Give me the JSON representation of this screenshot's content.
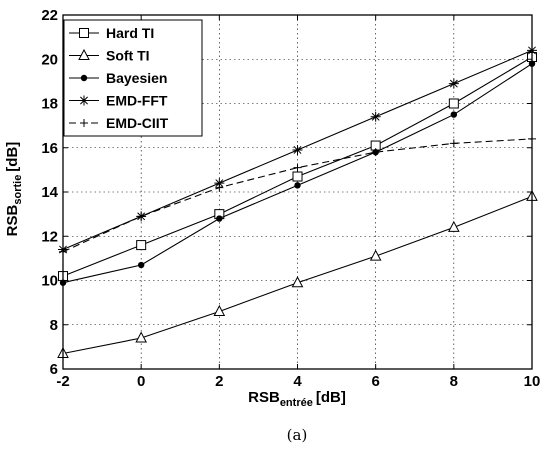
{
  "chart_data": {
    "type": "line",
    "xlabel": {
      "main": "RSB",
      "sub": "entrée",
      "unit": "[dB]"
    },
    "ylabel": {
      "main": "RSB",
      "sub": "sortie",
      "unit": "[dB]"
    },
    "xlim": [
      -2,
      10
    ],
    "ylim": [
      6,
      22
    ],
    "xticks": [
      -2,
      0,
      2,
      4,
      6,
      8,
      10
    ],
    "yticks": [
      6,
      8,
      10,
      12,
      14,
      16,
      18,
      20,
      22
    ],
    "grid": true,
    "legend_position": "top-left",
    "x": [
      -2,
      0,
      2,
      4,
      6,
      8,
      10
    ],
    "series": [
      {
        "name": "Hard TI",
        "marker": "square",
        "line": "solid",
        "values": [
          10.2,
          11.6,
          13.0,
          14.7,
          16.1,
          18.0,
          20.1
        ]
      },
      {
        "name": "Soft TI",
        "marker": "triangle",
        "line": "solid",
        "values": [
          6.7,
          7.4,
          8.6,
          9.9,
          11.1,
          12.4,
          13.8
        ]
      },
      {
        "name": "Bayesien",
        "marker": "dot",
        "line": "solid",
        "values": [
          9.9,
          10.7,
          12.8,
          14.3,
          15.8,
          17.5,
          19.8
        ]
      },
      {
        "name": "EMD-FFT",
        "marker": "asterisk",
        "line": "solid",
        "values": [
          11.4,
          12.9,
          14.4,
          15.9,
          17.4,
          18.9,
          20.4
        ]
      },
      {
        "name": "EMD-CIIT",
        "marker": "plus",
        "line": "dashed",
        "values": [
          11.3,
          12.9,
          14.2,
          15.1,
          15.8,
          16.2,
          16.4
        ]
      }
    ]
  },
  "caption": "(a)"
}
